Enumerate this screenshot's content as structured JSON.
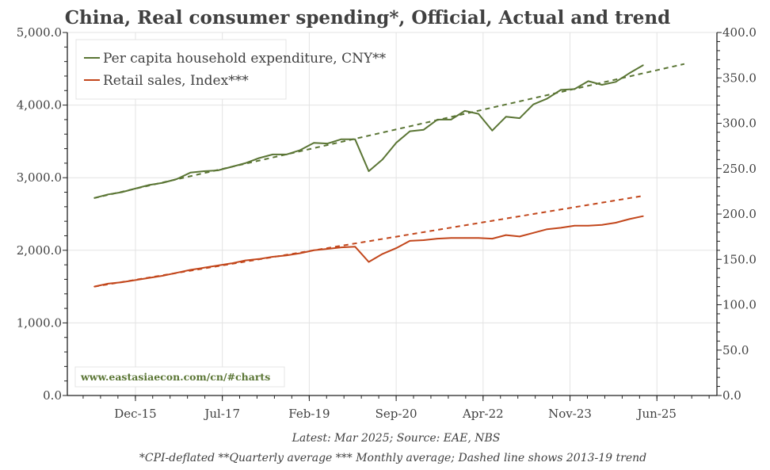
{
  "chart_data": {
    "type": "line",
    "title": "China, Real consumer spending*, Official, Actual and trend",
    "footnotes": [
      "Latest: Mar 2025; Source: EAE, NBS",
      "*CPI-deflated **Quarterly average *** Monthly average; Dashed line shows 2013-19 trend"
    ],
    "watermark": "www.eastasiaecon.com/cn/#charts",
    "legend_placement": "top-left",
    "grid": true,
    "x_tick_labels": [
      "Dec-15",
      "Jul-17",
      "Feb-19",
      "Sep-20",
      "Apr-22",
      "Nov-23",
      "Jun-25"
    ],
    "left_axis": {
      "ylim": [
        0,
        5000
      ],
      "tick_labels": [
        "0.0",
        "1,000.0",
        "2,000.0",
        "3,000.0",
        "4,000.0",
        "5,000.0"
      ]
    },
    "right_axis": {
      "ylim": [
        0,
        400
      ],
      "tick_labels": [
        "0.0",
        "50.0",
        "100.0",
        "150.0",
        "200.0",
        "250.0",
        "300.0",
        "350.0",
        "400.0"
      ]
    },
    "x": [
      "Mar-15",
      "Jun-15",
      "Sep-15",
      "Dec-15",
      "Mar-16",
      "Jun-16",
      "Sep-16",
      "Dec-16",
      "Mar-17",
      "Jun-17",
      "Sep-17",
      "Dec-17",
      "Mar-18",
      "Jun-18",
      "Sep-18",
      "Dec-18",
      "Mar-19",
      "Jun-19",
      "Sep-19",
      "Dec-19",
      "Mar-20",
      "Jun-20",
      "Sep-20",
      "Dec-20",
      "Mar-21",
      "Jun-21",
      "Sep-21",
      "Dec-21",
      "Mar-22",
      "Jun-22",
      "Sep-22",
      "Dec-22",
      "Mar-23",
      "Jun-23",
      "Sep-23",
      "Dec-23",
      "Mar-24",
      "Jun-24",
      "Sep-24",
      "Dec-24",
      "Mar-25"
    ],
    "series": [
      {
        "name": "Per capita household expenditure, CNY**",
        "axis": "left",
        "color": "#5a7534",
        "values": [
          2720,
          2770,
          2800,
          2850,
          2900,
          2930,
          2980,
          3070,
          3090,
          3100,
          3150,
          3200,
          3270,
          3320,
          3320,
          3380,
          3480,
          3470,
          3530,
          3530,
          3090,
          3250,
          3480,
          3640,
          3660,
          3800,
          3800,
          3920,
          3880,
          3650,
          3840,
          3820,
          4010,
          4090,
          4210,
          4220,
          4330,
          4280,
          4320,
          4440,
          4550
        ],
        "trend": {
          "style": "dashed",
          "points": [
            {
              "x": "Mar-15",
              "y": 2720
            },
            {
              "x": "Dec-25",
              "y": 4567
            }
          ]
        }
      },
      {
        "name": "Retail sales, Index***",
        "axis": "right",
        "color": "#c2461b",
        "values": [
          120,
          123.2,
          124.8,
          127.2,
          129.6,
          132,
          135.2,
          138.4,
          140.8,
          143.2,
          145.6,
          148.8,
          150.4,
          152.8,
          154.4,
          156.8,
          160,
          161.6,
          163.2,
          164,
          147.2,
          156,
          162.4,
          170.4,
          171.2,
          172.8,
          173.6,
          173.6,
          173.6,
          172.8,
          176.8,
          175.2,
          179.2,
          183.2,
          184.8,
          187.2,
          187.2,
          188,
          190.4,
          194.4,
          197.6
        ],
        "trend": {
          "style": "dashed",
          "points": [
            {
              "x": "Mar-15",
              "y": 120
            },
            {
              "x": "Mar-25",
              "y": 220
            }
          ]
        }
      }
    ]
  }
}
